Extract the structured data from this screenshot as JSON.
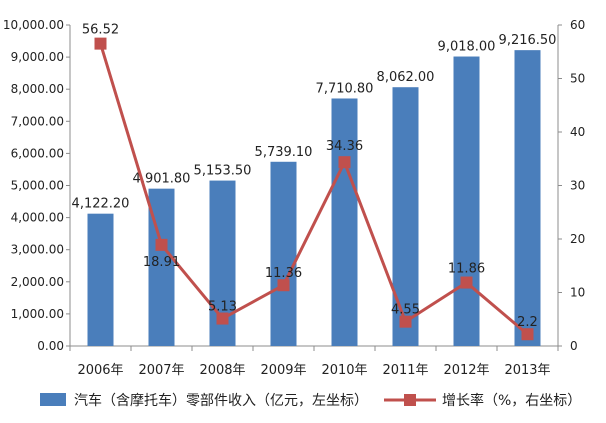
{
  "chart_data": {
    "type": "bar",
    "categories": [
      "2006年",
      "2007年",
      "2008年",
      "2009年",
      "2010年",
      "2011年",
      "2012年",
      "2013年"
    ],
    "series": [
      {
        "name": "汽车（含摩托车）零部件收入（亿元，左坐标）",
        "type": "bar",
        "axis": "left",
        "color": "#4a7ebb",
        "values": [
          4122.2,
          4901.8,
          5153.5,
          5739.1,
          7710.8,
          8062.0,
          9018.0,
          9216.5
        ],
        "labels": [
          "4,122.20",
          "4,901.80",
          "5,153.50",
          "5,739.10",
          "7,710.80",
          "8,062.00",
          "9,018.00",
          "9,216.50"
        ]
      },
      {
        "name": "增长率（%，右坐标）",
        "type": "line",
        "axis": "right",
        "color": "#c0504d",
        "values": [
          56.52,
          18.91,
          5.13,
          11.36,
          34.36,
          4.55,
          11.86,
          2.2
        ],
        "labels": [
          "56.52",
          "18.91",
          "5.13",
          "11.36",
          "34.36",
          "4.55",
          "11.86",
          "2.2"
        ]
      }
    ],
    "y_left": {
      "lim": [
        0,
        10000
      ],
      "ticks": [
        "0.00",
        "1,000.00",
        "2,000.00",
        "3,000.00",
        "4,000.00",
        "5,000.00",
        "6,000.00",
        "7,000.00",
        "8,000.00",
        "9,000.00",
        "10,000.00"
      ]
    },
    "y_right": {
      "lim": [
        0,
        60
      ],
      "ticks": [
        "0",
        "10",
        "20",
        "30",
        "40",
        "50",
        "60"
      ]
    },
    "grid": false,
    "legend_position": "bottom"
  }
}
